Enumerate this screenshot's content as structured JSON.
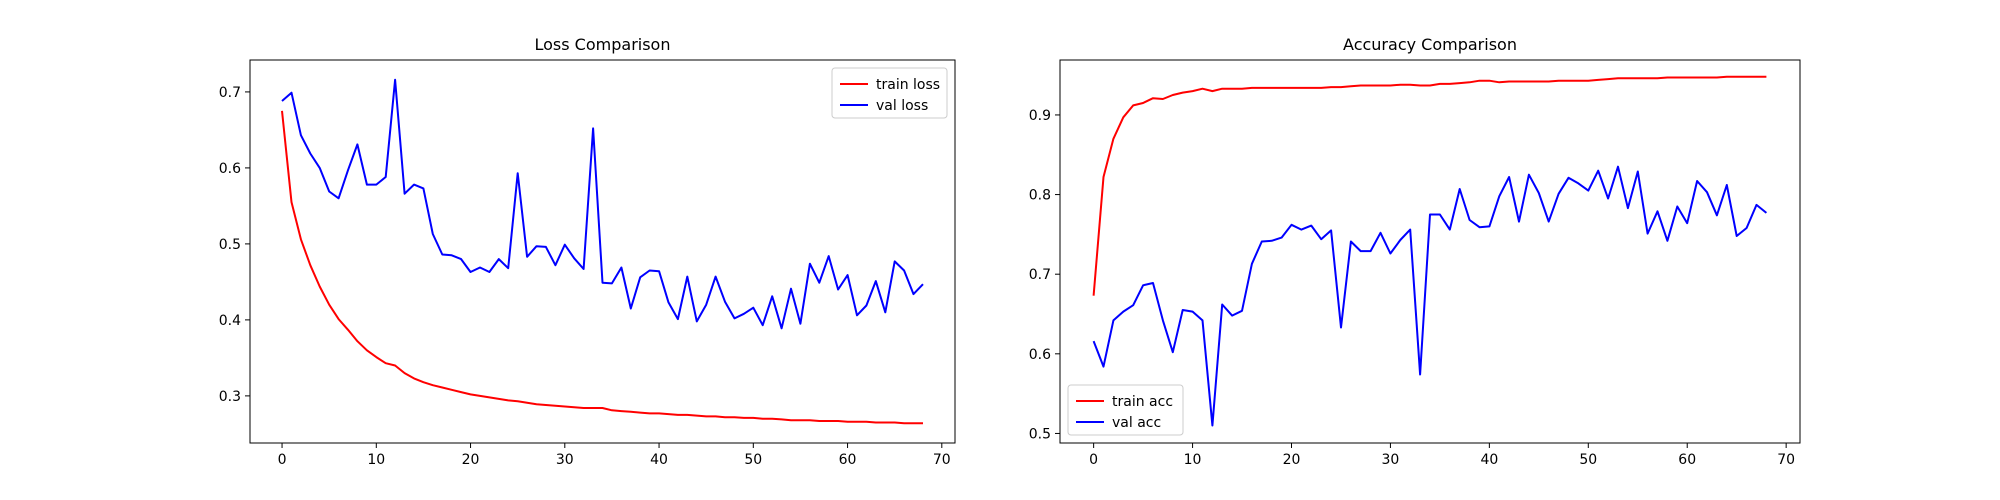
{
  "chart_data": [
    {
      "type": "line",
      "title": "Loss Comparison",
      "xlabel": "",
      "ylabel": "",
      "xlim": [
        -3.4,
        71.4
      ],
      "ylim": [
        0.238,
        0.742
      ],
      "xticks": [
        0,
        10,
        20,
        30,
        40,
        50,
        60,
        70
      ],
      "yticks": [
        0.3,
        0.4,
        0.5,
        0.6,
        0.7
      ],
      "grid": false,
      "legend": "upper right",
      "series": [
        {
          "name": "train loss",
          "color": "#ff0000",
          "values": [
            0.675,
            0.555,
            0.506,
            0.472,
            0.444,
            0.42,
            0.401,
            0.387,
            0.372,
            0.36,
            0.351,
            0.343,
            0.34,
            0.33,
            0.323,
            0.318,
            0.314,
            0.311,
            0.308,
            0.305,
            0.302,
            0.3,
            0.298,
            0.296,
            0.294,
            0.293,
            0.291,
            0.289,
            0.288,
            0.287,
            0.286,
            0.285,
            0.284,
            0.284,
            0.284,
            0.281,
            0.28,
            0.279,
            0.278,
            0.277,
            0.277,
            0.276,
            0.275,
            0.275,
            0.274,
            0.273,
            0.273,
            0.272,
            0.272,
            0.271,
            0.271,
            0.27,
            0.27,
            0.269,
            0.268,
            0.268,
            0.268,
            0.267,
            0.267,
            0.267,
            0.266,
            0.266,
            0.266,
            0.265,
            0.265,
            0.265,
            0.264,
            0.264,
            0.264
          ]
        },
        {
          "name": "val loss",
          "color": "#0000ff",
          "values": [
            0.688,
            0.699,
            0.643,
            0.619,
            0.6,
            0.569,
            0.56,
            0.597,
            0.631,
            0.578,
            0.578,
            0.588,
            0.716,
            0.566,
            0.578,
            0.573,
            0.513,
            0.486,
            0.485,
            0.48,
            0.463,
            0.469,
            0.463,
            0.48,
            0.468,
            0.593,
            0.483,
            0.497,
            0.496,
            0.472,
            0.499,
            0.481,
            0.467,
            0.652,
            0.449,
            0.448,
            0.469,
            0.415,
            0.456,
            0.465,
            0.464,
            0.423,
            0.401,
            0.457,
            0.398,
            0.42,
            0.457,
            0.424,
            0.402,
            0.408,
            0.416,
            0.393,
            0.431,
            0.389,
            0.441,
            0.395,
            0.474,
            0.449,
            0.484,
            0.44,
            0.459,
            0.406,
            0.419,
            0.451,
            0.41,
            0.477,
            0.465,
            0.434,
            0.447
          ]
        }
      ]
    },
    {
      "type": "line",
      "title": "Accuracy Comparison",
      "xlabel": "",
      "ylabel": "",
      "xlim": [
        -3.4,
        71.4
      ],
      "ylim": [
        0.488,
        0.969
      ],
      "xticks": [
        0,
        10,
        20,
        30,
        40,
        50,
        60,
        70
      ],
      "yticks": [
        0.5,
        0.6,
        0.7,
        0.8,
        0.9
      ],
      "grid": false,
      "legend": "lower left",
      "series": [
        {
          "name": "train acc",
          "color": "#ff0000",
          "values": [
            0.673,
            0.822,
            0.87,
            0.897,
            0.912,
            0.915,
            0.921,
            0.92,
            0.925,
            0.928,
            0.93,
            0.933,
            0.93,
            0.933,
            0.933,
            0.933,
            0.934,
            0.934,
            0.934,
            0.934,
            0.934,
            0.934,
            0.934,
            0.934,
            0.935,
            0.935,
            0.936,
            0.937,
            0.937,
            0.937,
            0.937,
            0.938,
            0.938,
            0.937,
            0.937,
            0.939,
            0.939,
            0.94,
            0.941,
            0.943,
            0.943,
            0.941,
            0.942,
            0.942,
            0.942,
            0.942,
            0.942,
            0.943,
            0.943,
            0.943,
            0.943,
            0.944,
            0.945,
            0.946,
            0.946,
            0.946,
            0.946,
            0.946,
            0.947,
            0.947,
            0.947,
            0.947,
            0.947,
            0.947,
            0.948,
            0.948,
            0.948,
            0.948,
            0.948
          ]
        },
        {
          "name": "val acc",
          "color": "#0000ff",
          "values": [
            0.616,
            0.584,
            0.642,
            0.653,
            0.661,
            0.686,
            0.689,
            0.642,
            0.602,
            0.655,
            0.653,
            0.642,
            0.51,
            0.662,
            0.648,
            0.654,
            0.713,
            0.741,
            0.742,
            0.746,
            0.762,
            0.756,
            0.761,
            0.744,
            0.755,
            0.633,
            0.741,
            0.729,
            0.729,
            0.752,
            0.726,
            0.743,
            0.756,
            0.574,
            0.775,
            0.775,
            0.756,
            0.807,
            0.768,
            0.759,
            0.76,
            0.798,
            0.822,
            0.766,
            0.825,
            0.802,
            0.766,
            0.801,
            0.821,
            0.814,
            0.805,
            0.83,
            0.795,
            0.835,
            0.783,
            0.829,
            0.751,
            0.779,
            0.742,
            0.785,
            0.764,
            0.817,
            0.803,
            0.774,
            0.812,
            0.748,
            0.758,
            0.787,
            0.777
          ]
        }
      ]
    }
  ]
}
